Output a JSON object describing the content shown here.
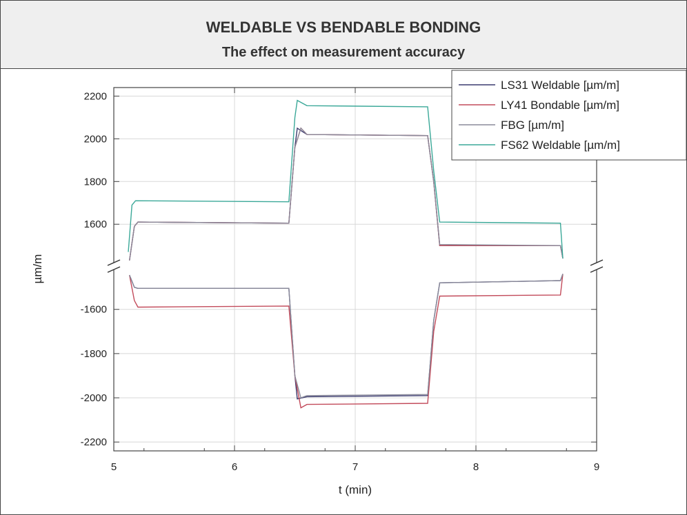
{
  "header": {
    "title": "WELDABLE VS BENDABLE BONDING",
    "subtitle": "The effect on measurement accuracy"
  },
  "chart_data": {
    "type": "line",
    "xlabel": "t (min)",
    "ylabel": "µm/m",
    "xlim": [
      5,
      9
    ],
    "x_ticks": [
      "5",
      "6",
      "7",
      "8",
      "9"
    ],
    "y_ticks_upper": [
      "2200",
      "2000",
      "1800",
      "1600"
    ],
    "y_ticks_lower": [
      "-1600",
      "-1800",
      "-2000",
      "-2200"
    ],
    "ylim_upper": [
      1420,
      2240
    ],
    "ylim_lower": [
      -2240,
      -1420
    ],
    "grid": true,
    "axis_break": true,
    "legend_position": "top-right",
    "colors": {
      "LS31": "#3a3a6e",
      "LY41": "#c24a5a",
      "FBG": "#8a8a9a",
      "FS62": "#3aa898"
    },
    "series": [
      {
        "name": "LS31 Weldable [µm/m]",
        "x": [
          5.13,
          5.17,
          5.2,
          6.45,
          6.5,
          6.52,
          6.6,
          7.6,
          7.65,
          7.7,
          8.7,
          8.72
        ],
        "upper": [
          1430,
          1590,
          1610,
          1605,
          1960,
          2050,
          2020,
          2015,
          1800,
          1500,
          1500,
          1440
        ],
        "lower": [
          -1445,
          -1500,
          -1505,
          -1505,
          -1900,
          -2005,
          -1995,
          -1990,
          -1650,
          -1480,
          -1470,
          -1440
        ]
      },
      {
        "name": "LY41 Bondable [µm/m]",
        "x": [
          5.13,
          5.17,
          5.2,
          6.45,
          6.5,
          6.55,
          6.6,
          7.6,
          7.65,
          7.7,
          8.7,
          8.72
        ],
        "upper": [
          1430,
          1590,
          1610,
          1605,
          1960,
          2050,
          2020,
          2015,
          1800,
          1500,
          1500,
          1440
        ],
        "lower": [
          -1445,
          -1560,
          -1590,
          -1585,
          -1900,
          -2045,
          -2030,
          -2025,
          -1700,
          -1540,
          -1535,
          -1440
        ]
      },
      {
        "name": "FBG [µm/m]",
        "x": [
          5.13,
          5.17,
          5.2,
          6.45,
          6.5,
          6.55,
          6.6,
          7.6,
          7.65,
          7.7,
          8.7,
          8.72
        ],
        "upper": [
          1430,
          1590,
          1610,
          1605,
          1960,
          2050,
          2020,
          2015,
          1800,
          1505,
          1500,
          1440
        ],
        "lower": [
          -1445,
          -1500,
          -1505,
          -1505,
          -1900,
          -2000,
          -1990,
          -1985,
          -1650,
          -1480,
          -1470,
          -1440
        ]
      },
      {
        "name": "FS62 Weldable [µm/m]",
        "x": [
          5.12,
          5.15,
          5.18,
          6.45,
          6.5,
          6.52,
          6.6,
          7.6,
          7.65,
          7.7,
          8.7,
          8.72
        ],
        "upper": [
          1470,
          1690,
          1710,
          1705,
          2100,
          2180,
          2155,
          2150,
          1850,
          1610,
          1605,
          1440
        ],
        "lower": []
      }
    ]
  }
}
